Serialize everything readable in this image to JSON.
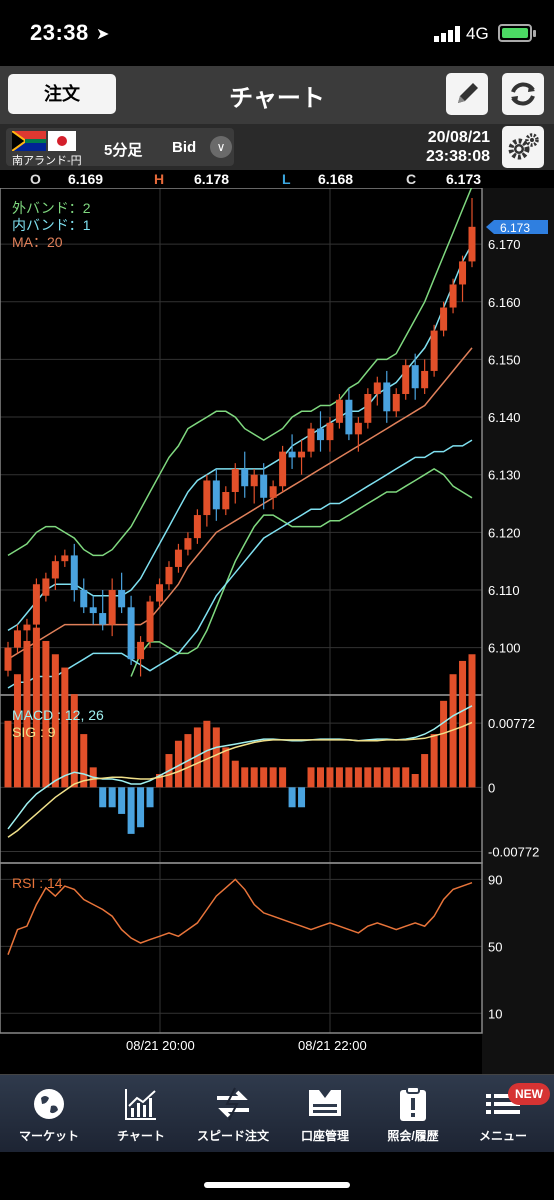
{
  "status": {
    "time": "23:38",
    "network": "4G"
  },
  "nav": {
    "order_label": "注文",
    "title": "チャート"
  },
  "instrument": {
    "pair": "南アランド-円",
    "timeframe": "5分足",
    "price_type": "Bid",
    "date": "20/08/21",
    "time": "23:38:08"
  },
  "ohlc": {
    "o_label": "O",
    "o": "6.169",
    "h_label": "H",
    "h": "6.178",
    "l_label": "L",
    "l": "6.168",
    "c_label": "C",
    "c": "6.173"
  },
  "legend": {
    "outer_band": "外バンド：2",
    "inner_band": "内バンド：1",
    "ma": "MA：20",
    "macd": "MACD : 12, 26",
    "sig": "SIG : 9",
    "rsi": "RSI : 14"
  },
  "colors": {
    "up": "#e2502a",
    "down": "#4aa3df",
    "outer_band": "#7fd87f",
    "inner_band": "#7fe0f0",
    "ma": "#e0805a",
    "macd": "#9ff0f0",
    "sig": "#f0e08a",
    "rsi": "#e8743a"
  },
  "chart_data": {
    "type": "candlestick",
    "price_axis": [
      "6.170",
      "6.160",
      "6.150",
      "6.140",
      "6.130",
      "6.120",
      "6.110",
      "6.100"
    ],
    "current_price": "6.173",
    "macd_axis": [
      "0.00772",
      "0",
      "-0.00772"
    ],
    "rsi_axis": [
      "90",
      "50",
      "10"
    ],
    "time_labels": [
      "08/21 20:00",
      "08/21 22:00"
    ],
    "candles": [
      [
        6.096,
        6.101,
        6.095,
        6.1
      ],
      [
        6.1,
        6.104,
        6.099,
        6.103
      ],
      [
        6.103,
        6.105,
        6.101,
        6.104
      ],
      [
        6.104,
        6.112,
        6.103,
        6.111
      ],
      [
        6.109,
        6.113,
        6.108,
        6.112
      ],
      [
        6.112,
        6.116,
        6.11,
        6.115
      ],
      [
        6.115,
        6.117,
        6.114,
        6.116
      ],
      [
        6.116,
        6.118,
        6.108,
        6.11
      ],
      [
        6.11,
        6.112,
        6.106,
        6.107
      ],
      [
        6.107,
        6.109,
        6.104,
        6.106
      ],
      [
        6.106,
        6.11,
        6.103,
        6.104
      ],
      [
        6.104,
        6.112,
        6.102,
        6.11
      ],
      [
        6.11,
        6.113,
        6.106,
        6.107
      ],
      [
        6.107,
        6.109,
        6.097,
        6.098
      ],
      [
        6.098,
        6.102,
        6.095,
        6.101
      ],
      [
        6.101,
        6.109,
        6.1,
        6.108
      ],
      [
        6.108,
        6.112,
        6.107,
        6.111
      ],
      [
        6.111,
        6.115,
        6.11,
        6.114
      ],
      [
        6.114,
        6.118,
        6.113,
        6.117
      ],
      [
        6.117,
        6.12,
        6.116,
        6.119
      ],
      [
        6.119,
        6.124,
        6.118,
        6.123
      ],
      [
        6.123,
        6.13,
        6.121,
        6.129
      ],
      [
        6.129,
        6.131,
        6.122,
        6.124
      ],
      [
        6.124,
        6.128,
        6.123,
        6.127
      ],
      [
        6.127,
        6.132,
        6.125,
        6.131
      ],
      [
        6.131,
        6.134,
        6.126,
        6.128
      ],
      [
        6.128,
        6.131,
        6.125,
        6.13
      ],
      [
        6.13,
        6.132,
        6.124,
        6.126
      ],
      [
        6.126,
        6.129,
        6.124,
        6.128
      ],
      [
        6.128,
        6.135,
        6.127,
        6.134
      ],
      [
        6.134,
        6.137,
        6.131,
        6.133
      ],
      [
        6.133,
        6.136,
        6.13,
        6.134
      ],
      [
        6.134,
        6.139,
        6.133,
        6.138
      ],
      [
        6.138,
        6.141,
        6.134,
        6.136
      ],
      [
        6.136,
        6.14,
        6.134,
        6.139
      ],
      [
        6.139,
        6.144,
        6.138,
        6.143
      ],
      [
        6.143,
        6.145,
        6.136,
        6.137
      ],
      [
        6.137,
        6.14,
        6.134,
        6.139
      ],
      [
        6.139,
        6.145,
        6.138,
        6.144
      ],
      [
        6.144,
        6.147,
        6.142,
        6.146
      ],
      [
        6.146,
        6.148,
        6.139,
        6.141
      ],
      [
        6.141,
        6.145,
        6.14,
        6.144
      ],
      [
        6.144,
        6.15,
        6.143,
        6.149
      ],
      [
        6.149,
        6.151,
        6.143,
        6.145
      ],
      [
        6.145,
        6.15,
        6.144,
        6.148
      ],
      [
        6.148,
        6.156,
        6.147,
        6.155
      ],
      [
        6.155,
        6.16,
        6.154,
        6.159
      ],
      [
        6.159,
        6.164,
        6.158,
        6.163
      ],
      [
        6.163,
        6.168,
        6.16,
        6.167
      ],
      [
        6.167,
        6.178,
        6.166,
        6.173
      ]
    ],
    "outer_upper": [
      6.116,
      6.117,
      6.118,
      6.12,
      6.121,
      6.121,
      6.12,
      6.119,
      6.117,
      6.116,
      6.116,
      6.117,
      6.119,
      6.121,
      6.124,
      6.127,
      6.13,
      6.133,
      6.135,
      6.138,
      6.139,
      6.14,
      6.141,
      6.141,
      6.14,
      6.138,
      6.137,
      6.136,
      6.137,
      6.138,
      6.14,
      6.141,
      6.141,
      6.142,
      6.142,
      6.143,
      6.145,
      6.146,
      6.148,
      6.15,
      6.15,
      6.151,
      6.154,
      6.157,
      6.16,
      6.164,
      6.168,
      6.172,
      6.176,
      6.18
    ],
    "inner_upper": [
      6.103,
      6.104,
      6.106,
      6.108,
      6.11,
      6.111,
      6.111,
      6.111,
      6.11,
      6.109,
      6.109,
      6.109,
      6.109,
      6.11,
      6.112,
      6.115,
      6.118,
      6.121,
      6.124,
      6.127,
      6.129,
      6.13,
      6.131,
      6.131,
      6.131,
      6.131,
      6.131,
      6.131,
      6.132,
      6.133,
      6.135,
      6.136,
      6.137,
      6.138,
      6.139,
      6.14,
      6.141,
      6.141,
      6.142,
      6.144,
      6.145,
      6.146,
      6.148,
      6.15,
      6.152,
      6.155,
      6.159,
      6.163,
      6.167,
      6.17
    ],
    "ma": [
      6.098,
      6.099,
      6.1,
      6.101,
      6.102,
      6.103,
      6.104,
      6.104,
      6.104,
      6.104,
      6.104,
      6.104,
      6.104,
      6.104,
      6.104,
      6.105,
      6.107,
      6.109,
      6.111,
      6.114,
      6.116,
      6.118,
      6.12,
      6.121,
      6.122,
      6.123,
      6.124,
      6.125,
      6.126,
      6.127,
      6.128,
      6.129,
      6.13,
      6.131,
      6.132,
      6.133,
      6.134,
      6.135,
      6.136,
      6.137,
      6.138,
      6.139,
      6.14,
      6.141,
      6.142,
      6.144,
      6.146,
      6.148,
      6.15,
      6.152
    ],
    "inner_lower": [
      6.093,
      6.094,
      6.094,
      6.095,
      6.095,
      6.095,
      6.096,
      6.097,
      6.098,
      6.099,
      6.099,
      6.099,
      6.099,
      6.098,
      6.097,
      6.096,
      6.097,
      6.098,
      6.099,
      6.101,
      6.103,
      6.106,
      6.109,
      6.111,
      6.113,
      6.115,
      6.117,
      6.119,
      6.12,
      6.121,
      6.122,
      6.123,
      6.124,
      6.124,
      6.125,
      6.125,
      6.126,
      6.127,
      6.128,
      6.129,
      6.13,
      6.131,
      6.132,
      6.133,
      6.133,
      6.134,
      6.134,
      6.135,
      6.135,
      6.136
    ],
    "outer_lower": [
      null,
      null,
      null,
      null,
      null,
      null,
      null,
      null,
      null,
      null,
      null,
      null,
      null,
      6.095,
      6.099,
      6.101,
      6.101,
      6.1,
      6.099,
      6.099,
      6.1,
      6.103,
      6.107,
      6.111,
      6.115,
      6.118,
      6.121,
      6.123,
      6.123,
      6.122,
      6.121,
      6.121,
      6.121,
      6.121,
      6.122,
      6.122,
      6.123,
      6.124,
      6.125,
      6.126,
      6.127,
      6.127,
      6.128,
      6.129,
      6.13,
      6.131,
      6.13,
      6.128,
      6.127,
      6.126
    ],
    "macd": [
      -0.005,
      -0.0035,
      -0.002,
      -0.0008,
      0.0,
      0.0008,
      0.0014,
      0.0018,
      0.0016,
      0.0012,
      0.001,
      0.001,
      0.0008,
      0.0004,
      0.0004,
      0.0008,
      0.0014,
      0.002,
      0.0026,
      0.0032,
      0.0038,
      0.0044,
      0.0048,
      0.005,
      0.0052,
      0.0054,
      0.0056,
      0.0058,
      0.0058,
      0.0057,
      0.0056,
      0.0056,
      0.0057,
      0.0058,
      0.0058,
      0.0058,
      0.0057,
      0.0056,
      0.0057,
      0.0058,
      0.0058,
      0.0057,
      0.0058,
      0.006,
      0.0064,
      0.007,
      0.0078,
      0.0086,
      0.0092,
      0.0098
    ],
    "sig": [
      -0.006,
      -0.0052,
      -0.0042,
      -0.0032,
      -0.0022,
      -0.0012,
      -0.0004,
      0.0004,
      0.0008,
      0.001,
      0.0011,
      0.0012,
      0.0012,
      0.0011,
      0.001,
      0.001,
      0.0012,
      0.0015,
      0.0019,
      0.0024,
      0.0029,
      0.0034,
      0.0039,
      0.0044,
      0.0048,
      0.0051,
      0.0054,
      0.0056,
      0.0057,
      0.0057,
      0.0057,
      0.0057,
      0.0057,
      0.0057,
      0.0057,
      0.0057,
      0.0057,
      0.0056,
      0.0056,
      0.0056,
      0.0057,
      0.0057,
      0.0057,
      0.0058,
      0.0059,
      0.0062,
      0.0065,
      0.0069,
      0.0073,
      0.0078
    ],
    "rsi": [
      45,
      60,
      62,
      75,
      85,
      80,
      86,
      84,
      78,
      75,
      72,
      68,
      60,
      55,
      52,
      54,
      56,
      58,
      56,
      60,
      64,
      72,
      80,
      85,
      90,
      84,
      75,
      70,
      68,
      66,
      64,
      62,
      60,
      62,
      64,
      62,
      60,
      58,
      62,
      64,
      62,
      60,
      62,
      64,
      62,
      68,
      78,
      84,
      86,
      88
    ]
  },
  "tabs": [
    {
      "label": "マーケット"
    },
    {
      "label": "チャート"
    },
    {
      "label": "スピード注文"
    },
    {
      "label": "口座管理"
    },
    {
      "label": "照会/履歴"
    },
    {
      "label": "メニュー",
      "badge": "NEW"
    }
  ]
}
